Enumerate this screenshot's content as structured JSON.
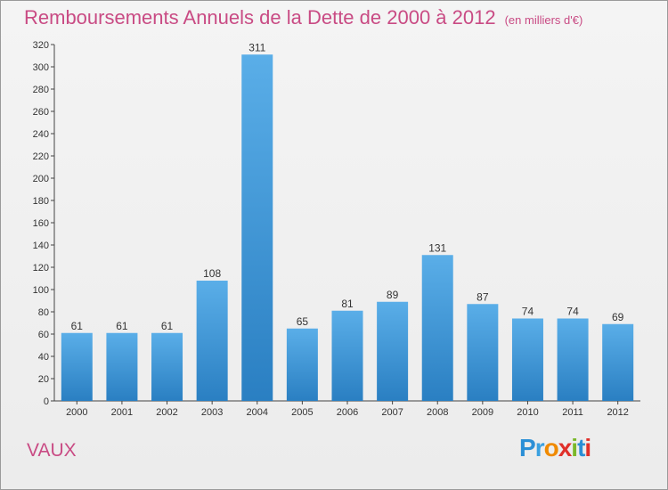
{
  "header": {
    "title": "Remboursements Annuels de la Dette de 2000 à 2012",
    "subtitle": "(en milliers d'€)"
  },
  "commune": "VAUX",
  "logo": {
    "text": "Proxiti"
  },
  "colors": {
    "title": "#c94b84",
    "bar_top": "#5aaee8",
    "bar_bottom": "#2a7fc2"
  },
  "chart_data": {
    "type": "bar",
    "title": "Remboursements Annuels de la Dette de 2000 à 2012",
    "subtitle": "(en milliers d'€)",
    "categories": [
      "2000",
      "2001",
      "2002",
      "2003",
      "2004",
      "2005",
      "2006",
      "2007",
      "2008",
      "2009",
      "2010",
      "2011",
      "2012"
    ],
    "values": [
      61,
      61,
      61,
      108,
      311,
      65,
      81,
      89,
      131,
      87,
      74,
      74,
      69
    ],
    "ylim": [
      0,
      320
    ],
    "yticks": [
      0,
      20,
      40,
      60,
      80,
      100,
      120,
      140,
      160,
      180,
      200,
      220,
      240,
      260,
      280,
      300,
      320
    ],
    "grid": false
  }
}
